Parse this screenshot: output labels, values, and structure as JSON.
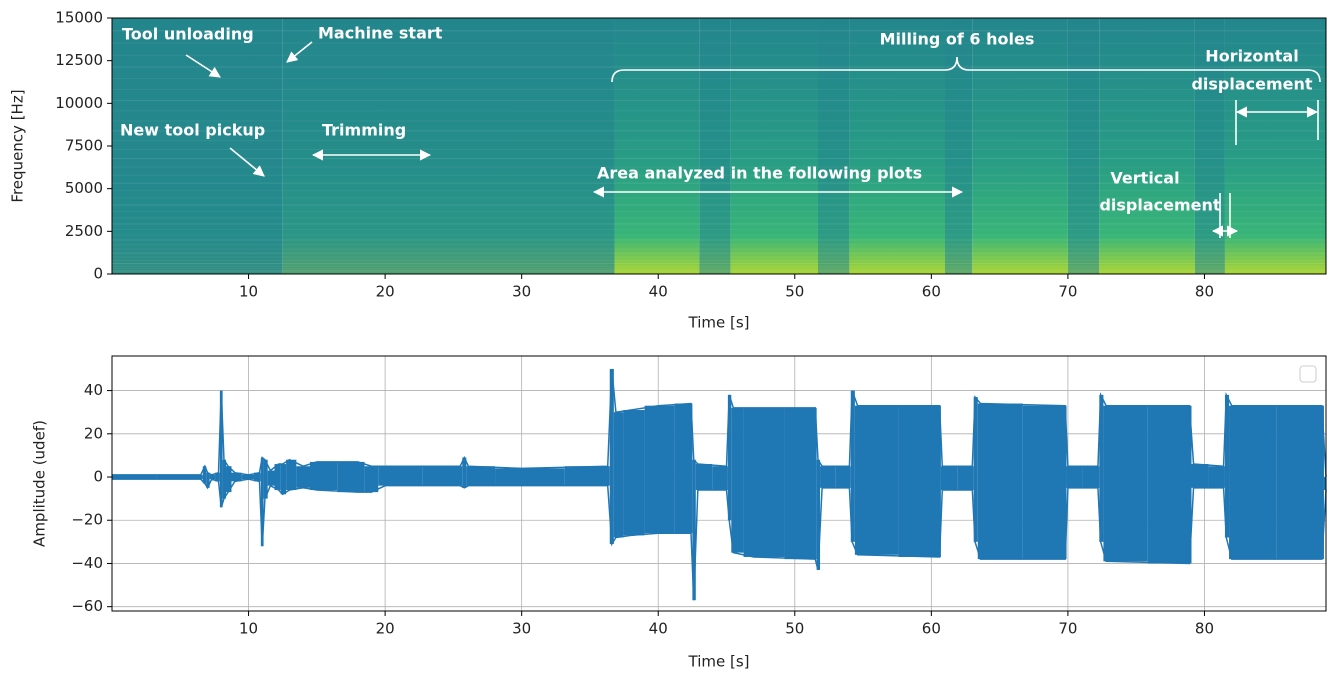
{
  "chart_data": [
    {
      "type": "spectrogram",
      "xlabel": "Time [s]",
      "ylabel": "Frequency [Hz]",
      "xlim": [
        0,
        88.9
      ],
      "ylim": [
        0,
        15000
      ],
      "xticks": [
        10,
        20,
        30,
        40,
        50,
        60,
        70,
        80
      ],
      "yticks": [
        0,
        2500,
        5000,
        7500,
        10000,
        12500,
        15000
      ],
      "grid": false,
      "time_edges": [
        0,
        12.5,
        36.8,
        43,
        45.3,
        51.7,
        54,
        61,
        63,
        70,
        72.3,
        79.3,
        81.5,
        88.9
      ],
      "levels": [
        0.1,
        0.3,
        0.9,
        0.4,
        0.9,
        0.4,
        0.9,
        0.4,
        0.9,
        0.4,
        0.9,
        0.4,
        0.9
      ],
      "annotations": [
        "Tool unloading",
        "Machine start",
        "New tool pickup",
        "Trimming",
        "Milling of 6 holes",
        "Horizontal",
        "displacement",
        "Area analyzed in the following plots",
        "Vertical",
        "displacement"
      ]
    },
    {
      "type": "envelope",
      "xlabel": "Time [s]",
      "ylabel": "Amplitude (udef)",
      "xlim": [
        0,
        88.9
      ],
      "ylim": [
        -62,
        56
      ],
      "xticks": [
        10,
        20,
        30,
        40,
        50,
        60,
        70,
        80
      ],
      "yticks": [
        40,
        20,
        0,
        {
          "value": -20,
          "label": "−20"
        },
        {
          "value": -40,
          "label": "−40"
        },
        {
          "value": -60,
          "label": "−60"
        }
      ],
      "grid": true,
      "color": "#1f77b4",
      "x": [
        0,
        6.5,
        6.8,
        7.0,
        7.3,
        7.8,
        8.0,
        8.2,
        8.5,
        9.0,
        10.0,
        10.8,
        11.0,
        11.2,
        11.6,
        12.2,
        12.5,
        13.0,
        14.0,
        15.0,
        18.0,
        19.0,
        20.0,
        25.5,
        25.8,
        26.1,
        30.0,
        36.3,
        36.6,
        36.9,
        38.0,
        40.0,
        42.4,
        42.6,
        42.9,
        45.0,
        45.2,
        45.5,
        47.0,
        51.5,
        51.7,
        52.0,
        54.0,
        54.2,
        54.6,
        60.6,
        60.8,
        63.0,
        63.2,
        63.6,
        69.8,
        70.0,
        72.2,
        72.4,
        72.8,
        78.9,
        79.2,
        81.4,
        81.6,
        82.0,
        88.6,
        88.9
      ],
      "upper": [
        1,
        1,
        5,
        2,
        1,
        2,
        40,
        8,
        5,
        2,
        1,
        2,
        9,
        8,
        3,
        6,
        6,
        8,
        5,
        7,
        7,
        5,
        5,
        5,
        9,
        5,
        4,
        5,
        50,
        30,
        31,
        33,
        34,
        8,
        6,
        5,
        38,
        32,
        32,
        32,
        8,
        5,
        5,
        40,
        33,
        33,
        5,
        5,
        37,
        34,
        33,
        5,
        5,
        38,
        33,
        33,
        6,
        5,
        38,
        33,
        33,
        0
      ],
      "lower": [
        -1,
        -1,
        -3,
        -5,
        -1,
        -2,
        -14,
        -10,
        -7,
        -2,
        -1,
        -2,
        -32,
        -10,
        -4,
        -6,
        -8,
        -6,
        -5,
        -6,
        -7,
        -7,
        -4,
        -4,
        -5,
        -4,
        -4,
        -4,
        -31,
        -28,
        -27,
        -26,
        -26,
        -57,
        -6,
        -6,
        -20,
        -35,
        -37,
        -38,
        -43,
        -5,
        -5,
        -30,
        -36,
        -37,
        -6,
        -6,
        -30,
        -38,
        -38,
        -5,
        -5,
        -30,
        -39,
        -40,
        -5,
        -5,
        -28,
        -38,
        -38,
        -6
      ]
    }
  ]
}
